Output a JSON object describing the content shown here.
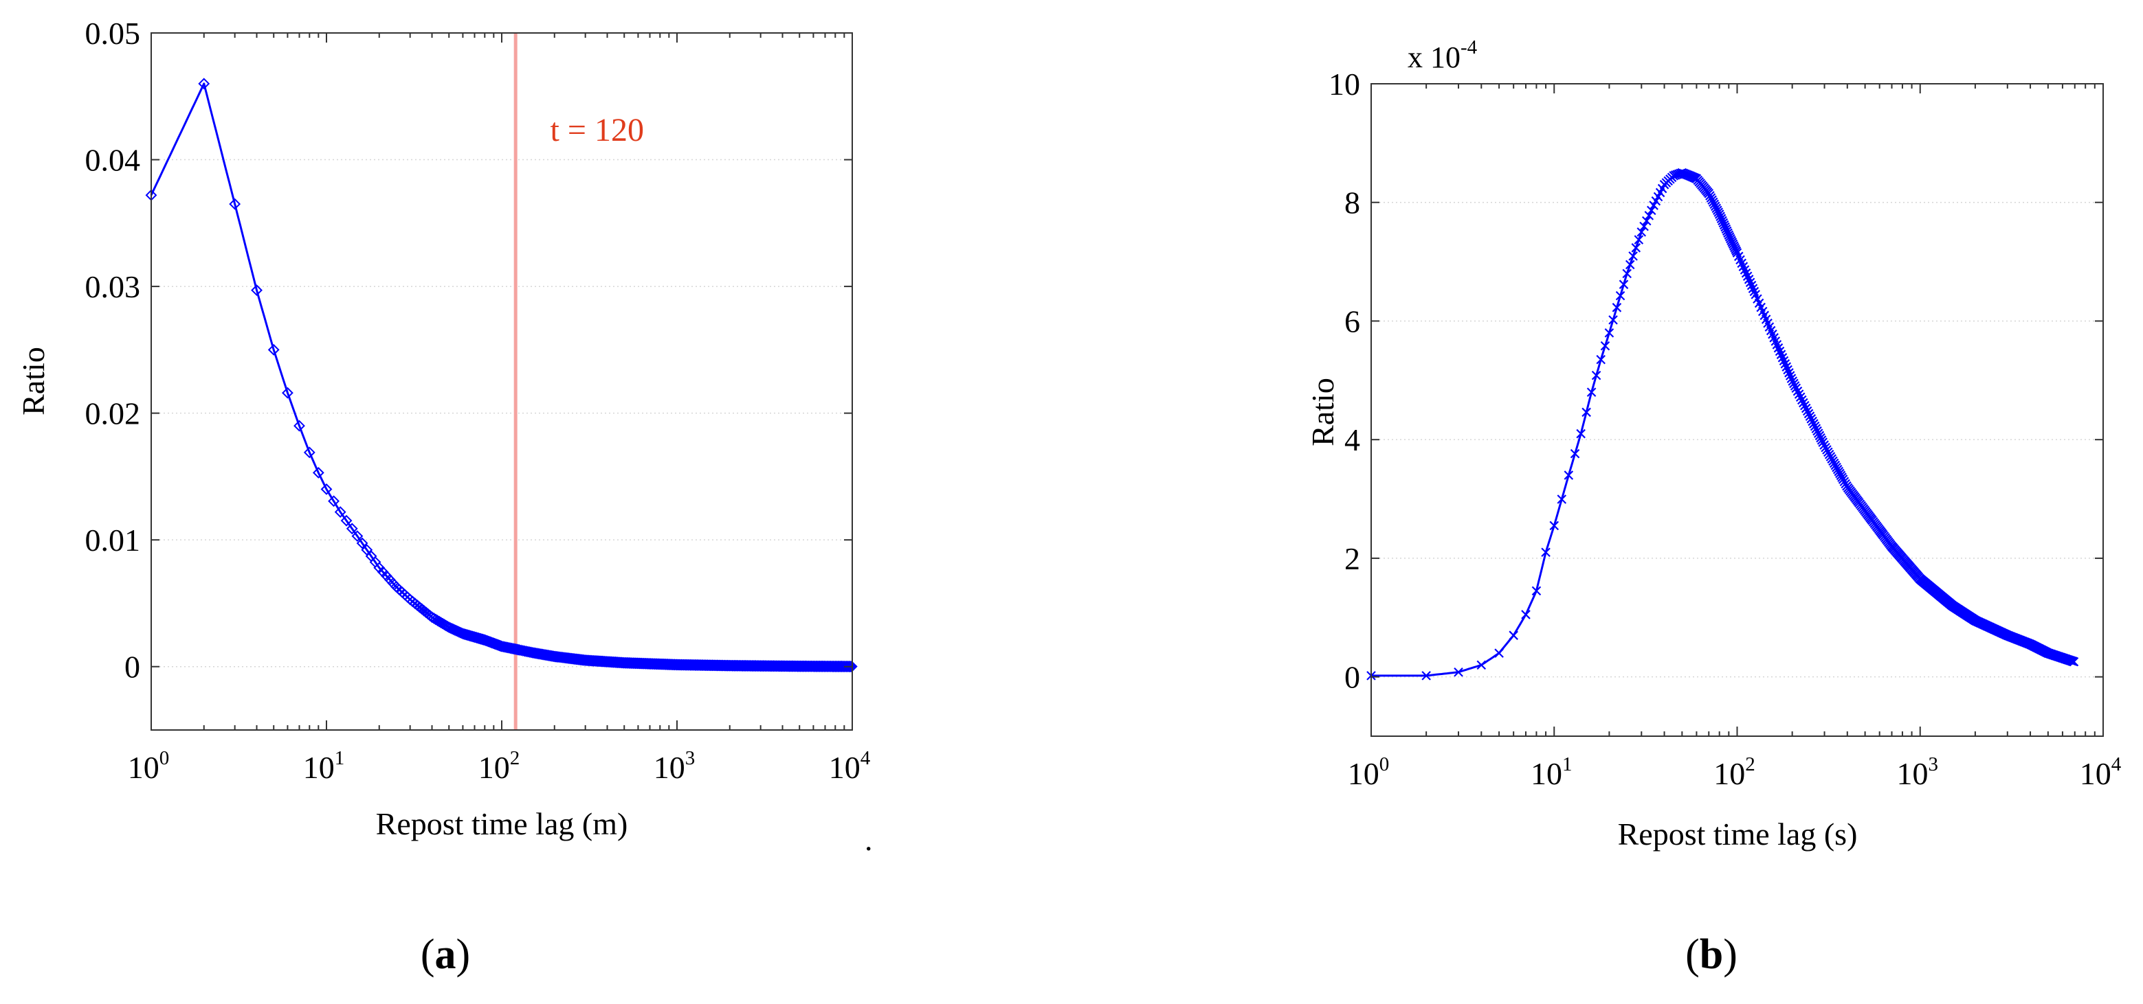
{
  "colors": {
    "series": "#0000ff",
    "annotation": "#e03c1c",
    "threshold": "#f5a3a0"
  },
  "chart_data": [
    {
      "id": "a",
      "panel_label": "a",
      "type": "line",
      "x_scale": "log",
      "xlim": [
        1,
        10000
      ],
      "ylim": [
        -0.005,
        0.05
      ],
      "x_ticks": [
        1,
        10,
        100,
        1000,
        10000
      ],
      "x_tick_labels": [
        {
          "base": "10",
          "exp": "0"
        },
        {
          "base": "10",
          "exp": "1"
        },
        {
          "base": "10",
          "exp": "2"
        },
        {
          "base": "10",
          "exp": "3"
        },
        {
          "base": "10",
          "exp": "4"
        }
      ],
      "y_ticks": [
        0,
        0.01,
        0.02,
        0.03,
        0.04,
        0.05
      ],
      "y_tick_labels": [
        "0",
        "0.01",
        "0.02",
        "0.03",
        "0.04",
        "0.05"
      ],
      "xlabel": "Repost time lag (m)",
      "ylabel": "Ratio",
      "grid": true,
      "marker": "diamond",
      "series": [
        {
          "name": "Ratio",
          "x": [
            1,
            2,
            3,
            4,
            5,
            6,
            7,
            8,
            9,
            10,
            12,
            15,
            20,
            25,
            30,
            40,
            50,
            60,
            80,
            100,
            150,
            200,
            300,
            500,
            1000,
            2000,
            5000,
            10000
          ],
          "y": [
            0.0372,
            0.046,
            0.0365,
            0.0297,
            0.025,
            0.0216,
            0.019,
            0.0169,
            0.0153,
            0.014,
            0.0122,
            0.0103,
            0.0078,
            0.0063,
            0.0053,
            0.0039,
            0.0031,
            0.0026,
            0.0021,
            0.0016,
            0.0011,
            0.0008,
            0.0005,
            0.0003,
            0.00015,
            8e-05,
            3e-05,
            1e-05
          ]
        }
      ],
      "vline": {
        "x": 120,
        "label": "t = 120",
        "label_at": [
          350,
          0.0415
        ]
      },
      "dense_markers_from": 10
    },
    {
      "id": "b",
      "panel_label": "b",
      "type": "line",
      "x_scale": "log",
      "xlim": [
        1,
        10000
      ],
      "ylim": [
        -1,
        10
      ],
      "y_multiplier": {
        "base": "x 10",
        "exp": "-4"
      },
      "x_ticks": [
        1,
        10,
        100,
        1000,
        10000
      ],
      "x_tick_labels": [
        {
          "base": "10",
          "exp": "0"
        },
        {
          "base": "10",
          "exp": "1"
        },
        {
          "base": "10",
          "exp": "2"
        },
        {
          "base": "10",
          "exp": "3"
        },
        {
          "base": "10",
          "exp": "4"
        }
      ],
      "y_ticks": [
        0,
        2,
        4,
        6,
        8,
        10
      ],
      "y_tick_labels": [
        "0",
        "2",
        "4",
        "6",
        "8",
        "10"
      ],
      "xlabel": "Repost time lag (s)",
      "ylabel": "Ratio",
      "grid": true,
      "marker": "x",
      "series": [
        {
          "name": "Ratio",
          "x": [
            1,
            2,
            3,
            4,
            5,
            6,
            7,
            8,
            9,
            10,
            12,
            14,
            16,
            18,
            20,
            25,
            30,
            35,
            40,
            45,
            50,
            55,
            60,
            70,
            80,
            90,
            100,
            120,
            150,
            200,
            300,
            400,
            500,
            700,
            1000,
            1500,
            2000,
            3000,
            4000,
            5000,
            7000
          ],
          "y": [
            0.02,
            0.02,
            0.08,
            0.2,
            0.4,
            0.7,
            1.05,
            1.45,
            2.1,
            2.55,
            3.4,
            4.1,
            4.8,
            5.35,
            5.8,
            6.8,
            7.5,
            7.95,
            8.3,
            8.45,
            8.5,
            8.45,
            8.4,
            8.15,
            7.8,
            7.45,
            7.15,
            6.6,
            5.9,
            5.0,
            3.9,
            3.2,
            2.8,
            2.2,
            1.65,
            1.2,
            0.95,
            0.7,
            0.55,
            0.4,
            0.25
          ]
        }
      ],
      "dense_markers_from": 15
    }
  ],
  "stray_mark": "."
}
